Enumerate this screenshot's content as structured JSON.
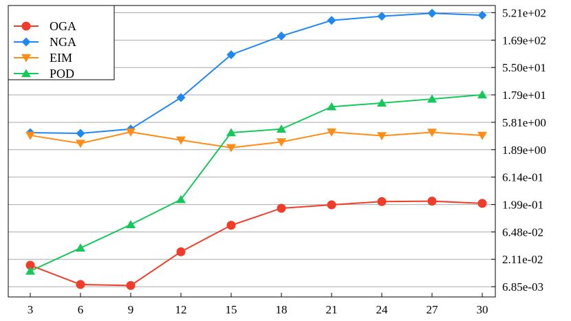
{
  "chart_data": {
    "type": "line",
    "title": "",
    "xlabel": "",
    "ylabel": "",
    "x": [
      3,
      6,
      9,
      12,
      15,
      18,
      21,
      24,
      27,
      30
    ],
    "x_ticks": [
      "3",
      "6",
      "9",
      "12",
      "15",
      "18",
      "21",
      "24",
      "27",
      "30"
    ],
    "y_scale": "log",
    "ylim": [
      0.0045,
      700
    ],
    "y_axis_side": "right",
    "y_ticks": [
      {
        "value": 0.00685,
        "label": "6.85e-03"
      },
      {
        "value": 0.0211,
        "label": "2.11e-02"
      },
      {
        "value": 0.0648,
        "label": "6.48e-02"
      },
      {
        "value": 0.199,
        "label": "1.99e-01"
      },
      {
        "value": 0.614,
        "label": "6.14e-01"
      },
      {
        "value": 1.89,
        "label": "1.89e+00"
      },
      {
        "value": 5.81,
        "label": "5.81e+00"
      },
      {
        "value": 17.9,
        "label": "1.79e+01"
      },
      {
        "value": 55.0,
        "label": "5.50e+01"
      },
      {
        "value": 169,
        "label": "1.69e+02"
      },
      {
        "value": 521,
        "label": "5.21e+02"
      }
    ],
    "grid": "horizontal",
    "legend_position": "top-left",
    "series": [
      {
        "name": "OGA",
        "color": "#f03c28",
        "marker": "circle",
        "values": [
          0.0165,
          0.0075,
          0.0072,
          0.0287,
          0.085,
          0.171,
          0.197,
          0.225,
          0.229,
          0.209
        ]
      },
      {
        "name": "NGA",
        "color": "#1e87f0",
        "marker": "diamond",
        "values": [
          3.8,
          3.7,
          4.4,
          16.0,
          93.0,
          200.0,
          380.0,
          450.0,
          510.0,
          470.0
        ]
      },
      {
        "name": "EIM",
        "color": "#ff8c14",
        "marker": "triangle-down",
        "values": [
          3.4,
          2.45,
          3.9,
          2.8,
          2.05,
          2.6,
          3.9,
          3.35,
          3.85,
          3.4
        ]
      },
      {
        "name": "POD",
        "color": "#14c85a",
        "marker": "triangle-up",
        "values": [
          0.013,
          0.0335,
          0.0875,
          0.245,
          3.8,
          4.4,
          11.0,
          12.8,
          15.1,
          18.0
        ]
      }
    ]
  }
}
